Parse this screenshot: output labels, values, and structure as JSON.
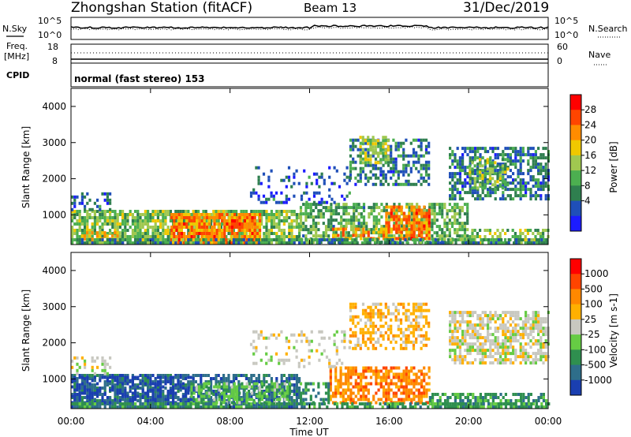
{
  "header": {
    "station": "Zhongshan Station (fitACF)",
    "beam": "Beam 13",
    "date": "31/Dec/2019"
  },
  "noise_panel": {
    "left_label": "N.Sky",
    "left_ticks": [
      "10^5",
      "10^0"
    ],
    "right_label": "N.Search",
    "right_ticks": [
      "10^5",
      "10^0"
    ]
  },
  "freq_panel": {
    "left_label_1": "Freq.",
    "left_label_2": "[MHz]",
    "left_ticks": [
      "18",
      "8"
    ],
    "right_label": "Nave",
    "right_ticks": [
      "60",
      "0"
    ]
  },
  "cpid_panel": {
    "label": "CPID",
    "text": "normal (fast stereo) 153"
  },
  "chart_data": [
    {
      "type": "heatmap",
      "name": "power",
      "ylabel": "Slant Range [km]",
      "xlabel": "",
      "xlim_hours": [
        0,
        24
      ],
      "ylim": [
        180,
        4500
      ],
      "y_ticks": [
        "4000",
        "3000",
        "2000",
        "1000"
      ],
      "y_tick_values": [
        4000,
        3000,
        2000,
        1000
      ],
      "colorbar": {
        "label": "Power [dB]",
        "ticks": [
          "28",
          "24",
          "20",
          "16",
          "12",
          "8",
          "4"
        ],
        "tick_values": [
          28,
          24,
          20,
          16,
          12,
          8,
          4
        ],
        "range": [
          0,
          32
        ],
        "colors": [
          "#1c1cff",
          "#1f4fb8",
          "#2f7f4f",
          "#4caf50",
          "#a0c850",
          "#f0c800",
          "#ff8c00",
          "#ff4500",
          "#ff0000"
        ]
      },
      "regions": [
        {
          "t0": 0.0,
          "t1": 11.5,
          "r0": 180,
          "r1": 1100,
          "level": 14,
          "coverage": 0.8
        },
        {
          "t0": 0.0,
          "t1": 2.0,
          "r0": 1100,
          "r1": 1600,
          "level": 6,
          "coverage": 0.4
        },
        {
          "t0": 5.0,
          "t1": 9.5,
          "r0": 180,
          "r1": 1050,
          "level": 24,
          "coverage": 0.85
        },
        {
          "t0": 0.5,
          "t1": 2.5,
          "r0": 200,
          "r1": 500,
          "level": 20,
          "coverage": 0.7
        },
        {
          "t0": 11.5,
          "t1": 20.0,
          "r0": 200,
          "r1": 1300,
          "level": 12,
          "coverage": 0.6
        },
        {
          "t0": 15.8,
          "t1": 18.0,
          "r0": 300,
          "r1": 1200,
          "level": 24,
          "coverage": 0.75
        },
        {
          "t0": 13.0,
          "t1": 16.0,
          "r0": 300,
          "r1": 600,
          "level": 22,
          "coverage": 0.6
        },
        {
          "t0": 9.0,
          "t1": 14.0,
          "r0": 1300,
          "r1": 2300,
          "level": 6,
          "coverage": 0.25
        },
        {
          "t0": 14.0,
          "t1": 18.0,
          "r0": 1800,
          "r1": 3100,
          "level": 8,
          "coverage": 0.55
        },
        {
          "t0": 14.5,
          "t1": 16.0,
          "r0": 2400,
          "r1": 3100,
          "level": 16,
          "coverage": 0.6
        },
        {
          "t0": 19.0,
          "t1": 24.0,
          "r0": 1400,
          "r1": 2800,
          "level": 8,
          "coverage": 0.6
        },
        {
          "t0": 20.0,
          "t1": 22.0,
          "r0": 1700,
          "r1": 2500,
          "level": 14,
          "coverage": 0.5
        },
        {
          "t0": 20.0,
          "t1": 24.0,
          "r0": 180,
          "r1": 600,
          "level": 14,
          "coverage": 0.6
        },
        {
          "t0": 0.0,
          "t1": 24.0,
          "r0": 180,
          "r1": 280,
          "level": 10,
          "coverage": 0.7
        }
      ]
    },
    {
      "type": "heatmap",
      "name": "velocity",
      "ylabel": "Slant Range [km]",
      "xlabel": "Time UT",
      "xlim_hours": [
        0,
        24
      ],
      "ylim": [
        180,
        4500
      ],
      "x_ticks": [
        "00:00",
        "04:00",
        "08:00",
        "12:00",
        "16:00",
        "20:00",
        "00:00"
      ],
      "x_tick_values": [
        0,
        4,
        8,
        12,
        16,
        20,
        24
      ],
      "y_ticks": [
        "4000",
        "3000",
        "2000",
        "1000"
      ],
      "y_tick_values": [
        4000,
        3000,
        2000,
        1000
      ],
      "colorbar": {
        "label": "Velocity [m s-1]",
        "ticks": [
          "1000",
          "500",
          "100",
          "25",
          "-25",
          "-100",
          "-500",
          "-1000"
        ],
        "tick_values": [
          1000,
          500,
          100,
          25,
          -25,
          -100,
          -500,
          -1000
        ],
        "colors": [
          "#1a3fb0",
          "#2e6e8a",
          "#2f8f4f",
          "#66cc44",
          "#c8c8c0",
          "#ffb000",
          "#ff8800",
          "#ff4400",
          "#ff0000"
        ]
      },
      "regions": [
        {
          "t0": 0.0,
          "t1": 11.5,
          "r0": 180,
          "r1": 1100,
          "class": 1,
          "coverage": 0.75
        },
        {
          "t0": 0.0,
          "t1": 6.0,
          "r0": 300,
          "r1": 1000,
          "class": 0,
          "coverage": 0.45
        },
        {
          "t0": 0.0,
          "t1": 2.0,
          "r0": 1100,
          "r1": 1600,
          "class": 4,
          "coverage": 0.35
        },
        {
          "t0": 6.0,
          "t1": 11.0,
          "r0": 300,
          "r1": 900,
          "class": 3,
          "coverage": 0.5
        },
        {
          "t0": 13.0,
          "t1": 18.0,
          "r0": 300,
          "r1": 1300,
          "class": 6,
          "coverage": 0.65
        },
        {
          "t0": 11.5,
          "t1": 13.0,
          "r0": 300,
          "r1": 900,
          "class": 2,
          "coverage": 0.5
        },
        {
          "t0": 18.0,
          "t1": 24.0,
          "r0": 180,
          "r1": 600,
          "class": 2,
          "coverage": 0.6
        },
        {
          "t0": 9.0,
          "t1": 14.0,
          "r0": 1300,
          "r1": 2300,
          "class": 4,
          "coverage": 0.25
        },
        {
          "t0": 14.0,
          "t1": 18.0,
          "r0": 1800,
          "r1": 3100,
          "class": 5,
          "coverage": 0.5
        },
        {
          "t0": 19.0,
          "t1": 24.0,
          "r0": 1400,
          "r1": 2800,
          "class": 4,
          "coverage": 0.65
        },
        {
          "t0": 0.0,
          "t1": 24.0,
          "r0": 180,
          "r1": 280,
          "class": 2,
          "coverage": 0.6
        }
      ]
    }
  ]
}
